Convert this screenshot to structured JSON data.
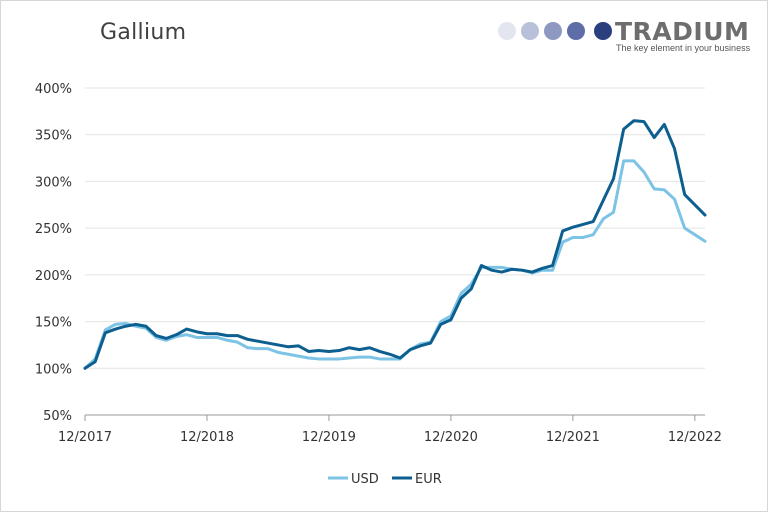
{
  "chart_data": {
    "type": "line",
    "title": "Gallium",
    "xlabel": "",
    "ylabel": "",
    "ylim": [
      50,
      400
    ],
    "yticks": [
      "400%",
      "350%",
      "300%",
      "250%",
      "200%",
      "150%",
      "100%",
      "50%"
    ],
    "ytick_values": [
      400,
      350,
      300,
      250,
      200,
      150,
      100,
      50
    ],
    "xticks": [
      "12/2017",
      "12/2018",
      "12/2019",
      "12/2020",
      "12/2021",
      "12/2022"
    ],
    "xtick_index": [
      0,
      12,
      24,
      36,
      48,
      60
    ],
    "grid": "horizontal",
    "legend_position": "bottom",
    "colors": {
      "USD": "#7cc3e5",
      "EUR": "#0c5f8f",
      "axis": "#9a9a9a",
      "grid": "#e3e3e3"
    },
    "x": [
      "2017-12",
      "2018-01",
      "2018-02",
      "2018-03",
      "2018-04",
      "2018-05",
      "2018-06",
      "2018-07",
      "2018-08",
      "2018-09",
      "2018-10",
      "2018-11",
      "2018-12",
      "2019-01",
      "2019-02",
      "2019-03",
      "2019-04",
      "2019-05",
      "2019-06",
      "2019-07",
      "2019-08",
      "2019-09",
      "2019-10",
      "2019-11",
      "2019-12",
      "2020-01",
      "2020-02",
      "2020-03",
      "2020-04",
      "2020-05",
      "2020-06",
      "2020-07",
      "2020-08",
      "2020-09",
      "2020-10",
      "2020-11",
      "2020-12",
      "2021-01",
      "2021-02",
      "2021-03",
      "2021-04",
      "2021-05",
      "2021-06",
      "2021-07",
      "2021-08",
      "2021-09",
      "2021-10",
      "2021-11",
      "2021-12",
      "2022-01",
      "2022-02",
      "2022-03",
      "2022-04",
      "2022-05",
      "2022-06",
      "2022-07",
      "2022-08",
      "2022-09",
      "2022-10",
      "2022-11",
      "2022-12",
      "2023-01"
    ],
    "series": [
      {
        "name": "USD",
        "values": [
          100,
          110,
          141,
          147,
          148,
          145,
          143,
          133,
          130,
          134,
          136,
          133,
          133,
          133,
          130,
          128,
          122,
          121,
          121,
          117,
          115,
          113,
          111,
          110,
          110,
          110,
          111,
          112,
          112,
          110,
          110,
          110,
          120,
          126,
          128,
          150,
          156,
          180,
          190,
          208,
          208,
          208,
          206,
          205,
          202,
          205,
          205,
          235,
          240,
          240,
          243,
          260,
          267,
          322,
          322,
          310,
          292,
          291,
          281,
          250,
          243,
          236
        ]
      },
      {
        "name": "EUR",
        "values": [
          100,
          107,
          138,
          142,
          145,
          147,
          145,
          135,
          132,
          136,
          142,
          139,
          137,
          137,
          135,
          135,
          131,
          129,
          127,
          125,
          123,
          124,
          118,
          119,
          118,
          119,
          122,
          120,
          122,
          118,
          115,
          111,
          120,
          124,
          127,
          147,
          152,
          175,
          185,
          210,
          205,
          203,
          206,
          205,
          203,
          207,
          210,
          247,
          251,
          254,
          257,
          280,
          303,
          356,
          365,
          364,
          347,
          361,
          335,
          286,
          275,
          264
        ]
      }
    ]
  },
  "logo": {
    "name": "TRADIUM",
    "tagline": "The key element in your business",
    "dot_colors": [
      "#e3e6ee",
      "#b9c0d9",
      "#8e99c2",
      "#5e6da7",
      "#2a3f7e"
    ]
  }
}
